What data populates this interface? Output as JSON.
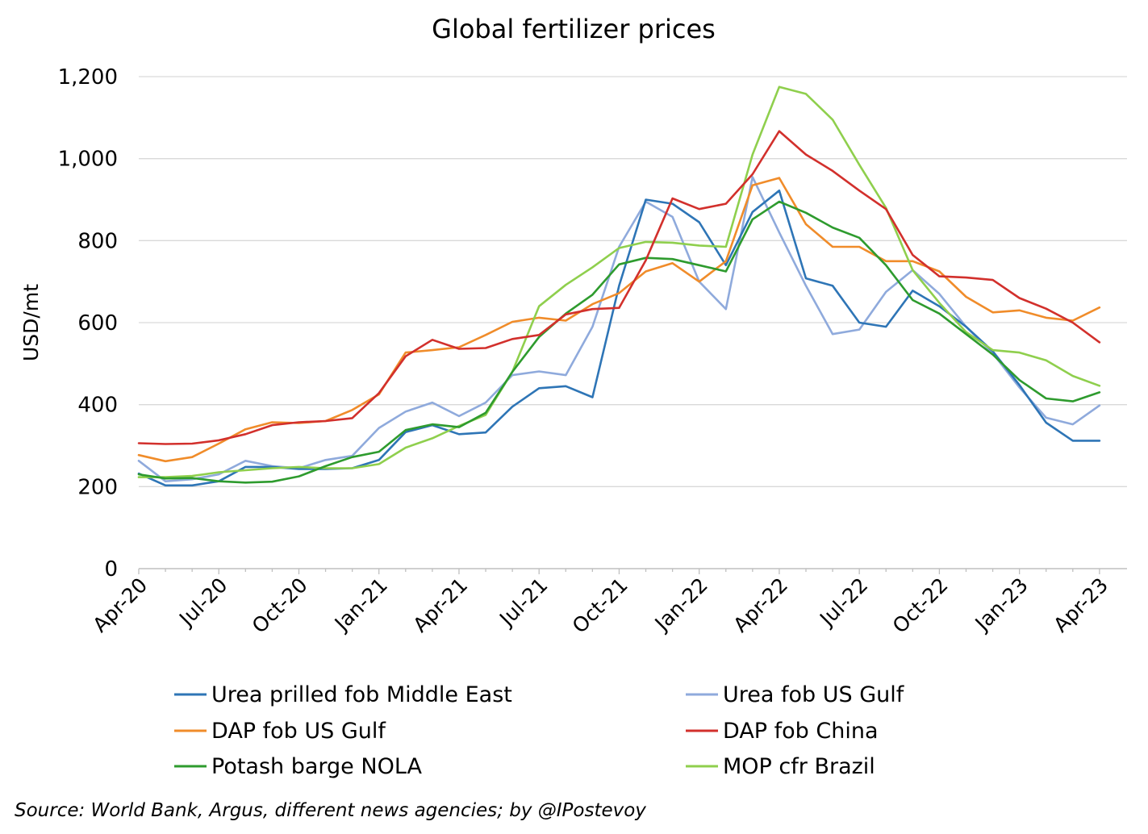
{
  "chart_data": {
    "type": "line",
    "title": "Global fertilizer prices",
    "xlabel": "",
    "ylabel": "USD/mt",
    "ylim": [
      0,
      1200
    ],
    "yticks": [
      "0",
      "200",
      "400",
      "600",
      "800",
      "1,000",
      "1,200"
    ],
    "xtick_labels": [
      "Apr-20",
      "Jul-20",
      "Oct-20",
      "Jan-21",
      "Apr-21",
      "Jul-21",
      "Oct-21",
      "Jan-22",
      "Apr-22",
      "Jul-22",
      "Oct-22",
      "Jan-23",
      "Apr-23"
    ],
    "x": [
      "Apr-20",
      "May-20",
      "Jun-20",
      "Jul-20",
      "Aug-20",
      "Sep-20",
      "Oct-20",
      "Nov-20",
      "Dec-20",
      "Jan-21",
      "Feb-21",
      "Mar-21",
      "Apr-21",
      "May-21",
      "Jun-21",
      "Jul-21",
      "Aug-21",
      "Sep-21",
      "Oct-21",
      "Nov-21",
      "Dec-21",
      "Jan-22",
      "Feb-22",
      "Mar-22",
      "Apr-22",
      "May-22",
      "Jun-22",
      "Jul-22",
      "Aug-22",
      "Sep-22",
      "Oct-22",
      "Nov-22",
      "Dec-22",
      "Jan-23",
      "Feb-23",
      "Mar-23",
      "Apr-23"
    ],
    "grid": true,
    "legend_position": "bottom",
    "series": [
      {
        "name": "Urea prilled fob Middle East",
        "color": "#2e75b6",
        "values": [
          232,
          203,
          203,
          213,
          248,
          248,
          243,
          243,
          245,
          265,
          333,
          350,
          328,
          332,
          395,
          440,
          445,
          418,
          690,
          900,
          890,
          845,
          740,
          870,
          922,
          708,
          690,
          600,
          590,
          678,
          640,
          590,
          530,
          448,
          356,
          312,
          312
        ]
      },
      {
        "name": "Urea fob US Gulf",
        "color": "#8faadc",
        "values": [
          263,
          213,
          218,
          230,
          263,
          250,
          245,
          265,
          275,
          343,
          383,
          405,
          372,
          405,
          472,
          481,
          472,
          590,
          785,
          895,
          858,
          700,
          633,
          955,
          820,
          690,
          572,
          583,
          675,
          728,
          670,
          590,
          525,
          442,
          368,
          352,
          398
        ]
      },
      {
        "name": "DAP fob US Gulf",
        "color": "#f08c2a",
        "values": [
          277,
          262,
          272,
          305,
          340,
          357,
          355,
          360,
          387,
          425,
          527,
          533,
          540,
          570,
          602,
          612,
          605,
          645,
          672,
          725,
          745,
          700,
          750,
          935,
          953,
          840,
          785,
          785,
          750,
          750,
          725,
          663,
          625,
          630,
          612,
          605,
          637
        ]
      },
      {
        "name": "DAP fob China",
        "color": "#d2302c",
        "values": [
          306,
          304,
          305,
          313,
          328,
          350,
          357,
          360,
          367,
          428,
          518,
          558,
          536,
          538,
          560,
          570,
          620,
          633,
          636,
          752,
          903,
          877,
          890,
          962,
          1067,
          1010,
          970,
          922,
          877,
          765,
          713,
          710,
          704,
          660,
          634,
          600,
          552
        ]
      },
      {
        "name": "Potash barge NOLA",
        "color": "#2e9b2e",
        "values": [
          230,
          220,
          221,
          213,
          210,
          212,
          225,
          250,
          272,
          285,
          338,
          352,
          345,
          380,
          480,
          565,
          622,
          668,
          742,
          758,
          755,
          740,
          725,
          852,
          895,
          868,
          832,
          807,
          740,
          655,
          622,
          572,
          522,
          460,
          415,
          408,
          430
        ]
      },
      {
        "name": "MOP cfr Brazil",
        "color": "#8fcf4d",
        "values": [
          223,
          223,
          226,
          235,
          240,
          245,
          248,
          245,
          245,
          255,
          295,
          318,
          348,
          375,
          480,
          640,
          692,
          735,
          782,
          797,
          795,
          788,
          785,
          1010,
          1175,
          1158,
          1095,
          985,
          880,
          728,
          648,
          577,
          533,
          527,
          508,
          470,
          446
        ]
      }
    ]
  },
  "source": "Source: World Bank, Argus, different news agencies; by @IPostevoy"
}
